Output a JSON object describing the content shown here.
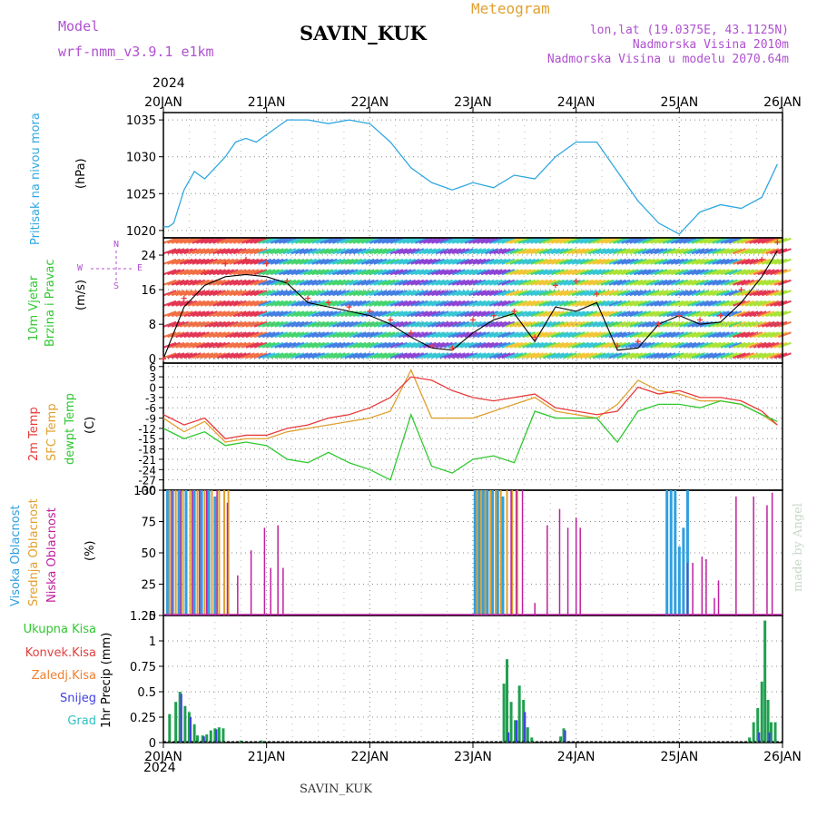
{
  "header": {
    "model_label": "Model",
    "model_name": "wrf-nmm_v3.9.1 e1km",
    "station": "SAVIN_KUK",
    "meteogram": "Meteogram",
    "lonlat": "lon,lat (19.0375E, 43.1125N)",
    "elevation": "Nadmorska Visina 2010m",
    "model_elevation": "Nadmorska Visina u modelu 2070.64m",
    "year": "2024",
    "footer_station": "SAVIN_KUK",
    "credit": "made by Angel"
  },
  "colors": {
    "purple": "#b050d0",
    "pressure": "#30a8e0",
    "temp2m": "#e83a3a",
    "sfc": "#e0a030",
    "dewpt": "#30c830",
    "high_cloud": "#30a0e0",
    "mid_cloud": "#e0a030",
    "low_cloud": "#c020a0",
    "precip": "#20a050",
    "conv": "#e04040",
    "frozen": "#f08030",
    "snow": "#4040e0",
    "graupel": "#30c0c0"
  },
  "chart_data": [
    {
      "type": "line",
      "panel": "pressure",
      "ylabel": "Pritisak na nivou mora",
      "unit": "(hPa)",
      "ylim": [
        1019,
        1036
      ],
      "yticks": [
        1020,
        1025,
        1030,
        1035
      ],
      "x": [
        0,
        0.05,
        0.1,
        0.2,
        0.3,
        0.4,
        0.5,
        0.6,
        0.7,
        0.8,
        0.9,
        1.0,
        1.2,
        1.4,
        1.6,
        1.8,
        2.0,
        2.2,
        2.4,
        2.6,
        2.8,
        3.0,
        3.2,
        3.4,
        3.6,
        3.8,
        4.0,
        4.2,
        4.4,
        4.6,
        4.8,
        5.0,
        5.2,
        5.4,
        5.6,
        5.8,
        5.95
      ],
      "series": [
        {
          "name": "Pritisak na nivou mora",
          "values": [
            1020.5,
            1020.5,
            1021,
            1025.5,
            1028,
            1027,
            1028.5,
            1030,
            1032,
            1032.5,
            1032,
            1033,
            1035,
            1035,
            1034.5,
            1035,
            1034.5,
            1032,
            1028.5,
            1026.5,
            1025.5,
            1026.5,
            1025.8,
            1027.5,
            1027,
            1030,
            1032,
            1032,
            1028,
            1024,
            1021,
            1019.5,
            1022.5,
            1023.5,
            1023,
            1024.5,
            1029
          ]
        }
      ]
    },
    {
      "type": "line",
      "panel": "wind",
      "ylabel": "10m Vjetar Brzina i Pravac",
      "unit": "(m/s)",
      "ylim": [
        -1,
        28
      ],
      "yticks": [
        0,
        8,
        16,
        24
      ],
      "compass": [
        "N",
        "W",
        "E",
        "S"
      ],
      "x": [
        0,
        0.2,
        0.4,
        0.6,
        0.8,
        1.0,
        1.2,
        1.4,
        1.6,
        1.8,
        2.0,
        2.2,
        2.4,
        2.6,
        2.8,
        3.0,
        3.2,
        3.4,
        3.6,
        3.8,
        4.0,
        4.2,
        4.4,
        4.6,
        4.8,
        5.0,
        5.2,
        5.4,
        5.6,
        5.8,
        5.95
      ],
      "series": [
        {
          "name": "speed",
          "values": [
            0,
            12,
            17,
            19,
            19.5,
            19,
            17.5,
            13,
            12,
            11,
            10,
            8,
            5,
            2.5,
            2,
            6,
            9,
            10.5,
            4,
            12,
            11,
            13,
            2,
            2.5,
            8,
            10,
            8,
            8.5,
            13,
            19,
            25
          ]
        },
        {
          "name": "gust",
          "values": [
            0,
            14,
            20,
            22,
            23,
            22,
            18,
            14,
            13,
            12,
            11,
            9,
            6,
            3,
            2.5,
            9,
            10,
            11,
            5,
            17,
            18,
            15,
            3,
            4,
            8,
            10,
            9,
            10,
            16,
            23,
            27
          ]
        }
      ]
    },
    {
      "type": "line",
      "panel": "temperature",
      "ylabel": [
        "2m Temp",
        "SFC Temp",
        "dewpt Temp"
      ],
      "unit": "(C)",
      "ylim": [
        -30,
        7
      ],
      "yticks": [
        -30,
        -27,
        -24,
        -21,
        -18,
        -15,
        -12,
        -9,
        -6,
        -3,
        0,
        3,
        6
      ],
      "x": [
        0,
        0.2,
        0.4,
        0.6,
        0.8,
        1.0,
        1.2,
        1.4,
        1.6,
        1.8,
        2.0,
        2.2,
        2.4,
        2.6,
        2.8,
        3.0,
        3.2,
        3.4,
        3.6,
        3.8,
        4.0,
        4.2,
        4.4,
        4.6,
        4.8,
        5.0,
        5.2,
        5.4,
        5.6,
        5.8,
        5.95
      ],
      "series": [
        {
          "name": "2m Temp",
          "values": [
            -8,
            -11,
            -9,
            -15,
            -14,
            -14,
            -12,
            -11,
            -9,
            -8,
            -6,
            -3,
            3,
            2,
            -1,
            -3,
            -4,
            -3,
            -2,
            -6,
            -7,
            -8,
            -7,
            0,
            -2,
            -1,
            -3,
            -3,
            -4,
            -7,
            -11
          ]
        },
        {
          "name": "SFC Temp",
          "values": [
            -9,
            -13,
            -10,
            -16,
            -15,
            -15,
            -13,
            -12,
            -11,
            -10,
            -9,
            -7,
            5,
            -9,
            -9,
            -9,
            -7,
            -5,
            -3,
            -7,
            -8,
            -9,
            -5,
            2,
            -1,
            -2,
            -4,
            -4,
            -5,
            -8,
            -11
          ]
        },
        {
          "name": "dewpt Temp",
          "values": [
            -12,
            -15,
            -13,
            -17,
            -16,
            -17,
            -21,
            -22,
            -19,
            -22,
            -24,
            -27,
            -8,
            -23,
            -25,
            -21,
            -20,
            -22,
            -7,
            -9,
            -9,
            -9,
            -16,
            -7,
            -5,
            -5,
            -6,
            -4,
            -5,
            -8,
            -10
          ]
        }
      ]
    },
    {
      "type": "bar",
      "panel": "cloud",
      "ylabel": [
        "Visoka Oblacnost",
        "Srednja Oblacnost",
        "Niska Oblacnost"
      ],
      "unit": "(%)",
      "ylim": [
        0,
        100
      ],
      "yticks": [
        0,
        25,
        50,
        75,
        100
      ],
      "series": [
        {
          "name": "Visoka Oblacnost",
          "points": [
            [
              0.04,
              100
            ],
            [
              0.09,
              100
            ],
            [
              0.15,
              100
            ],
            [
              0.22,
              100
            ],
            [
              0.3,
              100
            ],
            [
              0.37,
              100
            ],
            [
              0.44,
              100
            ],
            [
              0.5,
              95
            ],
            [
              3.02,
              100
            ],
            [
              3.06,
              100
            ],
            [
              3.1,
              100
            ],
            [
              3.14,
              100
            ],
            [
              3.19,
              100
            ],
            [
              3.24,
              100
            ],
            [
              3.29,
              95
            ],
            [
              4.88,
              100
            ],
            [
              4.92,
              100
            ],
            [
              4.96,
              100
            ],
            [
              5.0,
              55
            ],
            [
              5.04,
              70
            ],
            [
              5.08,
              100
            ]
          ]
        },
        {
          "name": "Srednja Oblacnost",
          "points": [
            [
              0.06,
              100
            ],
            [
              0.12,
              100
            ],
            [
              0.19,
              100
            ],
            [
              0.26,
              100
            ],
            [
              0.33,
              100
            ],
            [
              0.4,
              100
            ],
            [
              0.47,
              100
            ],
            [
              0.54,
              100
            ],
            [
              0.59,
              100
            ],
            [
              0.63,
              100
            ],
            [
              3.04,
              100
            ],
            [
              3.08,
              100
            ],
            [
              3.12,
              100
            ],
            [
              3.17,
              100
            ],
            [
              3.22,
              100
            ],
            [
              3.27,
              100
            ],
            [
              3.33,
              100
            ],
            [
              3.38,
              100
            ],
            [
              3.43,
              100
            ]
          ]
        },
        {
          "name": "Niska Oblacnost",
          "points": [
            [
              0.08,
              100
            ],
            [
              0.17,
              100
            ],
            [
              0.28,
              100
            ],
            [
              0.35,
              100
            ],
            [
              0.42,
              100
            ],
            [
              0.52,
              100
            ],
            [
              0.62,
              90
            ],
            [
              0.72,
              32
            ],
            [
              0.85,
              52
            ],
            [
              0.98,
              70
            ],
            [
              1.04,
              38
            ],
            [
              1.11,
              72
            ],
            [
              1.16,
              38
            ],
            [
              3.37,
              100
            ],
            [
              3.42,
              100
            ],
            [
              3.48,
              100
            ],
            [
              3.6,
              10
            ],
            [
              3.72,
              72
            ],
            [
              3.84,
              85
            ],
            [
              3.92,
              70
            ],
            [
              4.0,
              78
            ],
            [
              4.04,
              70
            ],
            [
              5.08,
              42
            ],
            [
              5.13,
              42
            ],
            [
              5.22,
              47
            ],
            [
              5.26,
              45
            ],
            [
              5.34,
              14
            ],
            [
              5.38,
              28
            ],
            [
              5.55,
              95
            ],
            [
              5.72,
              95
            ],
            [
              5.85,
              88
            ],
            [
              5.9,
              98
            ]
          ]
        }
      ]
    },
    {
      "type": "bar",
      "panel": "precip",
      "ylabel": "1hr Precip (mm)",
      "legend": [
        "Ukupna Kisa",
        "Konvek.Kisa",
        "Zaledj.Kisa",
        "Snijeg",
        "Grad"
      ],
      "ylim": [
        0,
        1.25
      ],
      "yticks": [
        0,
        0.25,
        0.5,
        0.75,
        1,
        1.25
      ],
      "x_categories": [
        "20JAN",
        "21JAN",
        "22JAN",
        "23JAN",
        "24JAN",
        "25JAN",
        "26JAN"
      ],
      "series": [
        {
          "name": "Ukupna Kisa",
          "points": [
            [
              0.06,
              0.28
            ],
            [
              0.12,
              0.4
            ],
            [
              0.16,
              0.5
            ],
            [
              0.21,
              0.36
            ],
            [
              0.25,
              0.3
            ],
            [
              0.3,
              0.18
            ],
            [
              0.33,
              0.07
            ],
            [
              0.38,
              0.07
            ],
            [
              0.42,
              0.08
            ],
            [
              0.46,
              0.12
            ],
            [
              0.5,
              0.14
            ],
            [
              0.54,
              0.15
            ],
            [
              0.58,
              0.14
            ],
            [
              0.75,
              0.02
            ],
            [
              0.95,
              0.02
            ],
            [
              3.3,
              0.58
            ],
            [
              3.33,
              0.82
            ],
            [
              3.37,
              0.4
            ],
            [
              3.41,
              0.22
            ],
            [
              3.45,
              0.56
            ],
            [
              3.49,
              0.42
            ],
            [
              3.53,
              0.15
            ],
            [
              3.57,
              0.05
            ],
            [
              3.85,
              0.06
            ],
            [
              3.88,
              0.14
            ],
            [
              5.68,
              0.05
            ],
            [
              5.72,
              0.2
            ],
            [
              5.76,
              0.34
            ],
            [
              5.8,
              0.6
            ],
            [
              5.83,
              1.2
            ],
            [
              5.86,
              0.42
            ],
            [
              5.89,
              0.2
            ],
            [
              5.93,
              0.2
            ]
          ]
        },
        {
          "name": "Snijeg",
          "points": [
            [
              0.16,
              0.48
            ],
            [
              0.25,
              0.25
            ],
            [
              0.38,
              0.06
            ],
            [
              0.5,
              0.13
            ],
            [
              3.33,
              0.1
            ],
            [
              3.41,
              0.22
            ],
            [
              3.49,
              0.3
            ],
            [
              3.88,
              0.12
            ],
            [
              5.76,
              0.1
            ],
            [
              5.86,
              0.1
            ]
          ]
        }
      ]
    }
  ]
}
